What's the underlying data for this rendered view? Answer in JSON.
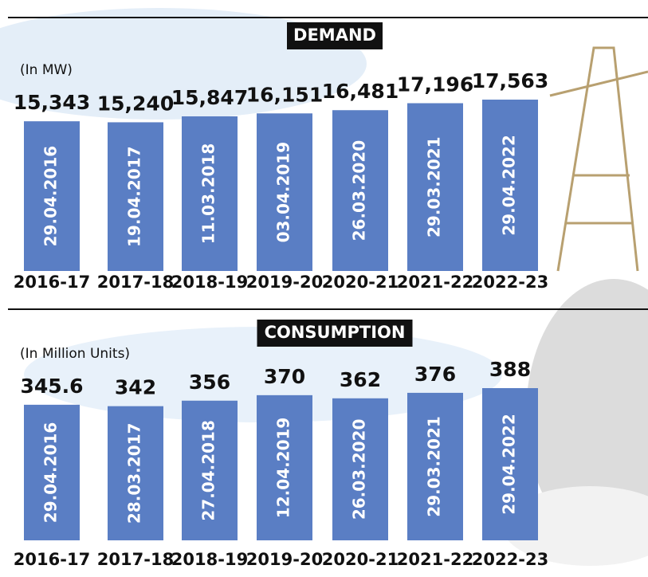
{
  "chart_data": [
    {
      "type": "bar",
      "title": "DEMAND",
      "subtitle": "(In MW)",
      "categories": [
        "2016-17",
        "2017-18",
        "2018-19",
        "2019-20",
        "2020-21",
        "2021-22",
        "2022-23"
      ],
      "values": [
        15343,
        15240,
        15847,
        16151,
        16481,
        17196,
        17563
      ],
      "value_labels": [
        "15,343",
        "15,240",
        "15,847",
        "16,151",
        "16,481",
        "17,196",
        "17,563"
      ],
      "bar_labels": [
        "29.04.2016",
        "19.04.2017",
        "11.03.2018",
        "03.04.2019",
        "26.03.2020",
        "29.03.2021",
        "29.04.2022"
      ],
      "color": "#5a7ec4"
    },
    {
      "type": "bar",
      "title": "CONSUMPTION",
      "subtitle": "(In Million Units)",
      "categories": [
        "2016-17",
        "2017-18",
        "2018-19",
        "2019-20",
        "2020-21",
        "2021-22",
        "2022-23"
      ],
      "values": [
        345.6,
        342,
        356,
        370,
        362,
        376,
        388
      ],
      "bar_labels": [
        "29.04.2016",
        "28.03.2017",
        "27.04.2018",
        "12.04.2019",
        "26.03.2020",
        "29.03.2021",
        "29.04.2022"
      ],
      "color": "#5a7ec4"
    }
  ]
}
